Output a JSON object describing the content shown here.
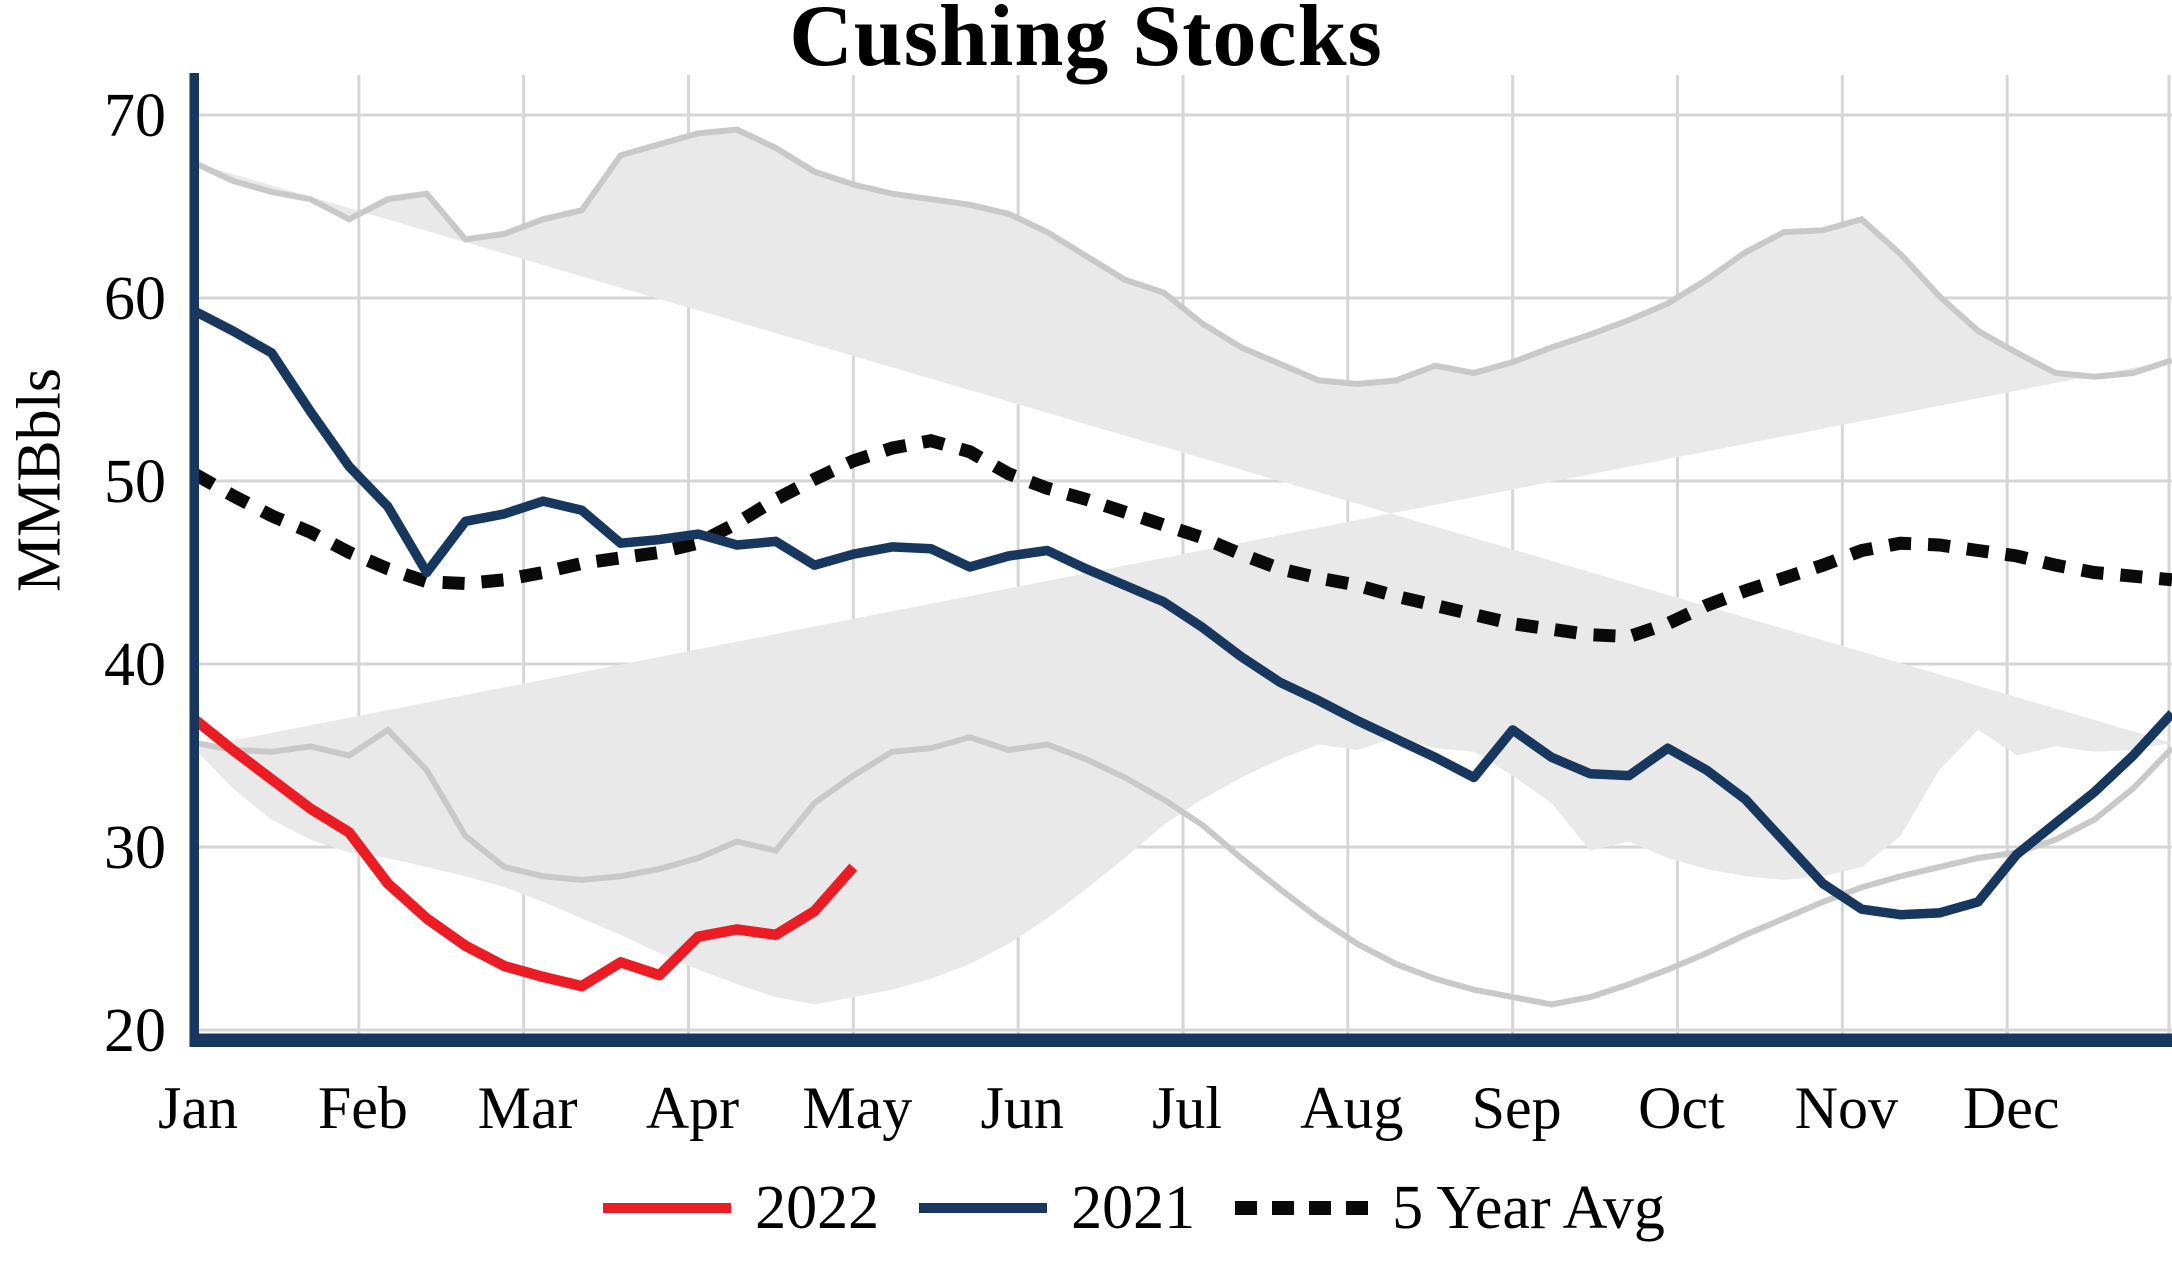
{
  "title": "Cushing Stocks",
  "y_axis": {
    "label": "MMBbls",
    "ticks": [
      70,
      60,
      50,
      40,
      30,
      20
    ]
  },
  "x_axis": {
    "months": [
      "Jan",
      "Feb",
      "Mar",
      "Apr",
      "May",
      "Jun",
      "Jul",
      "Aug",
      "Sep",
      "Oct",
      "Nov",
      "Dec"
    ]
  },
  "legend": {
    "items": [
      {
        "label": "2022",
        "style": "solid",
        "color": "#ec1c24"
      },
      {
        "label": "2021",
        "style": "solid",
        "color": "#17375e"
      },
      {
        "label": "5 Year Avg",
        "style": "dotted",
        "color": "#0a0a0a"
      }
    ]
  },
  "colors": {
    "series_2022": "#ec1c24",
    "series_2021": "#17375e",
    "five_year_avg": "#0a0a0a",
    "band_fill": "#e9e9e9",
    "band_edge": "#c9c9c9",
    "grid": "#d6d6d6",
    "axis": "#17375e",
    "text": "#000000",
    "background": "#ffffff"
  },
  "chart_data": {
    "type": "line",
    "title": "Cushing Stocks",
    "xlabel": "",
    "ylabel": "MMBbls",
    "ylim": [
      20,
      72
    ],
    "grid": true,
    "legend_position": "bottom",
    "x_unit": "weekly points spanning Jan 1 through Dec 31",
    "months": [
      "Jan",
      "Feb",
      "Mar",
      "Apr",
      "May",
      "Jun",
      "Jul",
      "Aug",
      "Sep",
      "Oct",
      "Nov",
      "Dec"
    ],
    "band": {
      "name": "5 Year Range",
      "upper_series": "5 Year Range Max",
      "lower_series": "5 Year Range Min"
    },
    "series": [
      {
        "name": "2022",
        "role": "line",
        "color": "#ec1c24",
        "line_style": "solid",
        "values": [
          37.0,
          35.3,
          33.7,
          32.1,
          30.8,
          28.0,
          26.1,
          24.6,
          23.5,
          22.9,
          22.4,
          23.7,
          23.0,
          25.1,
          25.5,
          25.2,
          26.5,
          28.9
        ]
      },
      {
        "name": "2021",
        "role": "line",
        "color": "#17375e",
        "line_style": "solid",
        "values": [
          59.3,
          58.2,
          57.0,
          53.8,
          50.8,
          48.6,
          45.0,
          47.8,
          48.2,
          48.9,
          48.4,
          46.6,
          46.8,
          47.1,
          46.5,
          46.7,
          45.4,
          46.0,
          46.4,
          46.3,
          45.3,
          45.9,
          46.2,
          45.2,
          44.3,
          43.4,
          42.0,
          40.4,
          39.0,
          38.0,
          36.9,
          35.9,
          34.9,
          33.8,
          36.4,
          34.9,
          34.0,
          33.9,
          35.4,
          34.2,
          32.6,
          30.3,
          28.0,
          26.6,
          26.3,
          26.4,
          27.0,
          29.6,
          31.3,
          33.0,
          35.0,
          37.3
        ]
      },
      {
        "name": "5 Year Avg",
        "role": "line",
        "color": "#0a0a0a",
        "line_style": "dotted",
        "values": [
          50.4,
          49.2,
          48.1,
          47.2,
          46.1,
          45.2,
          44.5,
          44.4,
          44.6,
          45.0,
          45.5,
          45.8,
          46.1,
          46.6,
          47.7,
          49.0,
          50.1,
          51.1,
          51.8,
          52.2,
          51.6,
          50.4,
          49.6,
          49.0,
          48.3,
          47.6,
          46.9,
          46.0,
          45.2,
          44.7,
          44.3,
          43.7,
          43.2,
          42.7,
          42.2,
          41.9,
          41.6,
          41.5,
          42.2,
          43.2,
          44.0,
          44.7,
          45.4,
          46.2,
          46.6,
          46.5,
          46.2,
          45.9,
          45.4,
          45.0,
          44.8,
          44.6
        ]
      },
      {
        "name": "5 Year Range Max",
        "role": "band-upper",
        "color": "#c9c9c9",
        "line_style": "solid",
        "values": [
          67.4,
          66.4,
          65.8,
          65.4,
          64.3,
          65.4,
          65.7,
          63.2,
          63.5,
          64.3,
          64.8,
          67.8,
          68.4,
          69.0,
          69.2,
          68.2,
          66.9,
          66.2,
          65.7,
          65.4,
          65.1,
          64.6,
          63.6,
          62.3,
          61.0,
          60.3,
          58.6,
          57.3,
          56.4,
          55.5,
          55.3,
          55.5,
          56.3,
          55.9,
          56.5,
          57.3,
          58.0,
          58.8,
          59.7,
          61.0,
          62.5,
          63.6,
          63.7,
          64.3,
          62.4,
          60.1,
          58.2,
          57.0,
          55.9,
          55.7,
          55.9,
          56.6
        ]
      },
      {
        "name": "5 Year Range Min",
        "role": "band-lower",
        "color": "#c9c9c9",
        "line_style": "solid",
        "values": [
          35.7,
          35.3,
          35.2,
          35.5,
          35.0,
          36.4,
          34.2,
          30.6,
          28.9,
          28.4,
          28.2,
          28.4,
          28.8,
          29.4,
          30.3,
          29.8,
          32.4,
          33.9,
          35.2,
          35.4,
          36.0,
          35.3,
          35.6,
          34.8,
          33.8,
          32.6,
          31.2,
          29.4,
          27.7,
          26.1,
          24.7,
          23.6,
          22.8,
          22.2,
          21.8,
          21.4,
          21.8,
          22.5,
          23.3,
          24.2,
          25.2,
          26.1,
          27.0,
          27.8,
          28.4,
          28.9,
          29.4,
          29.7,
          30.4,
          31.5,
          33.2,
          35.4
        ]
      }
    ]
  }
}
